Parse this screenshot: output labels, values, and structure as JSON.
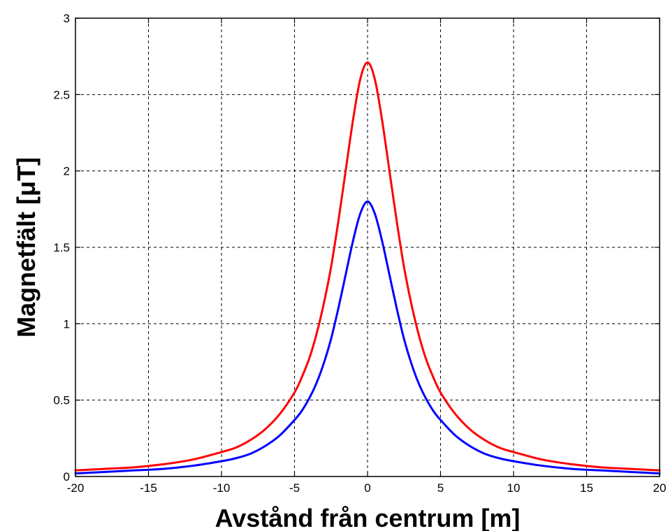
{
  "chart_data": {
    "type": "line",
    "title": "",
    "xlabel": "Avstånd från centrum [m]",
    "ylabel": "Magnetfält [μT]",
    "xlim": [
      -20,
      20
    ],
    "ylim": [
      0,
      3
    ],
    "grid": true,
    "x_ticks": [
      "-20",
      "-15",
      "-10",
      "-5",
      "0",
      "5",
      "10",
      "15",
      "20"
    ],
    "y_ticks": [
      "0",
      "0.5",
      "1",
      "1.5",
      "2",
      "2.5",
      "3"
    ],
    "x": [
      -20,
      -18,
      -16,
      -14,
      -12,
      -10,
      -9,
      -8,
      -7,
      -6,
      -5,
      -4.5,
      -4,
      -3.5,
      -3,
      -2.5,
      -2,
      -1.5,
      -1,
      -0.5,
      0,
      0.5,
      1,
      1.5,
      2,
      2.5,
      3,
      3.5,
      4,
      4.5,
      5,
      6,
      7,
      8,
      9,
      10,
      12,
      14,
      16,
      18,
      20
    ],
    "series": [
      {
        "color": "#ff0000",
        "values": [
          0.04,
          0.05,
          0.06,
          0.08,
          0.11,
          0.16,
          0.19,
          0.24,
          0.31,
          0.41,
          0.55,
          0.65,
          0.77,
          0.93,
          1.13,
          1.37,
          1.67,
          2.0,
          2.33,
          2.6,
          2.71,
          2.6,
          2.33,
          2.0,
          1.67,
          1.37,
          1.13,
          0.93,
          0.77,
          0.65,
          0.55,
          0.41,
          0.31,
          0.24,
          0.19,
          0.16,
          0.11,
          0.08,
          0.06,
          0.05,
          0.04
        ]
      },
      {
        "color": "#0000ff",
        "values": [
          0.02,
          0.03,
          0.04,
          0.05,
          0.07,
          0.1,
          0.12,
          0.15,
          0.2,
          0.27,
          0.37,
          0.43,
          0.51,
          0.61,
          0.74,
          0.9,
          1.1,
          1.32,
          1.54,
          1.72,
          1.8,
          1.72,
          1.54,
          1.32,
          1.1,
          0.9,
          0.74,
          0.61,
          0.51,
          0.43,
          0.37,
          0.27,
          0.2,
          0.15,
          0.12,
          0.1,
          0.07,
          0.05,
          0.04,
          0.03,
          0.02
        ]
      }
    ]
  }
}
